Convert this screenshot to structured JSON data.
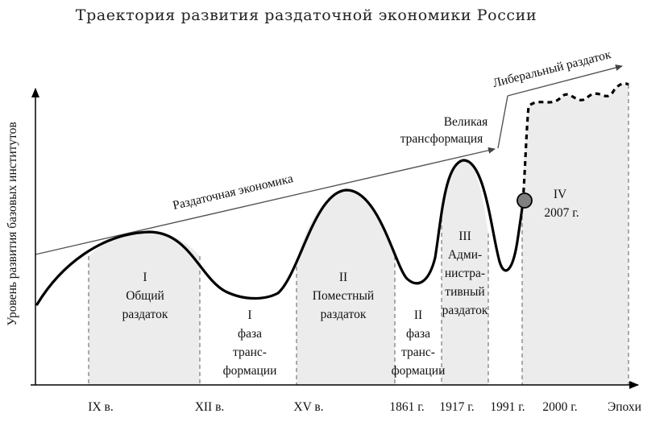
{
  "title": "Траектория развития раздаточной экономики России",
  "y_axis_label": "Уровень развития базовых институтов",
  "x_axis_label": "Эпохи",
  "x_ticks": [
    "IX в.",
    "XII в.",
    "XV в.",
    "1861 г.",
    "1917 г.",
    "1991 г.",
    "2000 г."
  ],
  "trend_labels": {
    "distributive": "Раздаточная экономика",
    "great_transformation": [
      "Великая",
      "трансформация"
    ],
    "liberal": "Либеральный раздаток"
  },
  "phases": {
    "p1": [
      "I",
      "Общий",
      "раздаток"
    ],
    "t1": [
      "I",
      "фаза",
      "транс-",
      "формации"
    ],
    "p2": [
      "II",
      "Поместный",
      "раздаток"
    ],
    "t2": [
      "II",
      "фаза",
      "транс-",
      "формации"
    ],
    "p3": [
      "III",
      "Адми-",
      "нистра-",
      "тивный",
      "раздаток"
    ],
    "p4": [
      "IV",
      "2007 г."
    ]
  },
  "colors": {
    "line": "#000000",
    "shade": "#ececec",
    "marker": "#808080"
  }
}
